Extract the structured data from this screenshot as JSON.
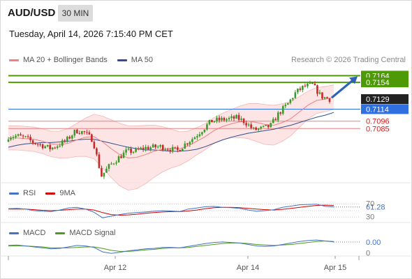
{
  "header": {
    "symbol": "AUD/USD",
    "timeframe": "30 MIN",
    "datetime": "Tuesday, April 14, 2026 7:15:40 PM CET"
  },
  "legends": {
    "main": [
      {
        "label": "MA 20 + Bollinger Bands",
        "color": "#f08080"
      },
      {
        "label": "MA 50",
        "color": "#2e4f8f"
      }
    ],
    "credit": "Research © 2026 Trading Central",
    "rsi": [
      {
        "label": "RSI",
        "color": "#4472c4"
      },
      {
        "label": "9MA",
        "color": "#d00000"
      }
    ],
    "macd": [
      {
        "label": "MACD",
        "color": "#4472c4"
      },
      {
        "label": "MACD Signal",
        "color": "#4f9a1a"
      }
    ]
  },
  "colors": {
    "up_candle": "#3a9a2a",
    "down_candle": "#c62828",
    "band_fill": "#fde0e0",
    "resistance_line": "#4e9a06",
    "pivot_line": "#2f6fde",
    "support_line": "#e88080",
    "forecast_arrow": "#2f63b8",
    "last_price_bg": "#222222"
  },
  "chart_data": [
    {
      "type": "candlestick",
      "title": "AUD/USD",
      "timeframe": "30 MIN",
      "x_ticks": [
        "Apr 12",
        "Apr 14",
        "Apr 15"
      ],
      "ylim": [
        0.7004,
        0.7177
      ],
      "last_price": 0.7129,
      "price_labels": [
        {
          "value": 0.7164,
          "style": "resistance-box"
        },
        {
          "value": 0.7154,
          "style": "resistance-box"
        },
        {
          "value": 0.7129,
          "style": "last-price"
        },
        {
          "value": 0.7114,
          "style": "pivot-box"
        },
        {
          "value": 0.7096,
          "style": "support-text"
        },
        {
          "value": 0.7085,
          "style": "support-text"
        }
      ],
      "levels": {
        "resistance": [
          0.7164,
          0.7154
        ],
        "pivot": 0.7114,
        "support": [
          0.7096,
          0.7085
        ]
      },
      "close_path": [
        0.7073,
        0.7074,
        0.7071,
        0.7064,
        0.706,
        0.7055,
        0.7061,
        0.7069,
        0.7082,
        0.7079,
        0.7068,
        0.7014,
        0.703,
        0.7041,
        0.7051,
        0.7051,
        0.7056,
        0.7057,
        0.7058,
        0.7055,
        0.7052,
        0.7063,
        0.7072,
        0.7084,
        0.7096,
        0.7098,
        0.7099,
        0.7101,
        0.7095,
        0.7083,
        0.7085,
        0.7089,
        0.7108,
        0.7121,
        0.7139,
        0.7148,
        0.715,
        0.7133,
        0.7129
      ],
      "series": [
        {
          "name": "MA 20",
          "values": [
            0.7071,
            0.7071,
            0.707,
            0.7069,
            0.7066,
            0.7062,
            0.7061,
            0.7063,
            0.7068,
            0.7072,
            0.7073,
            0.7065,
            0.7055,
            0.7046,
            0.7041,
            0.7042,
            0.7046,
            0.7051,
            0.7054,
            0.7055,
            0.7055,
            0.7059,
            0.7066,
            0.7073,
            0.7082,
            0.7088,
            0.7092,
            0.7095,
            0.7096,
            0.7094,
            0.7091,
            0.709,
            0.7094,
            0.71,
            0.711,
            0.712,
            0.7127,
            0.7129,
            0.7132
          ]
        },
        {
          "name": "MA 50",
          "values": [
            0.7057,
            0.706,
            0.7062,
            0.7063,
            0.7064,
            0.7064,
            0.7065,
            0.7066,
            0.7068,
            0.7069,
            0.7069,
            0.7066,
            0.7063,
            0.706,
            0.7057,
            0.7055,
            0.7053,
            0.7053,
            0.7052,
            0.7051,
            0.7051,
            0.7052,
            0.7054,
            0.7058,
            0.7063,
            0.7068,
            0.7072,
            0.7075,
            0.7078,
            0.708,
            0.7082,
            0.7084,
            0.7087,
            0.709,
            0.7094,
            0.7098,
            0.7102,
            0.7105,
            0.7109
          ]
        }
      ]
    },
    {
      "type": "line",
      "title": "RSI",
      "ylim": [
        20,
        80
      ],
      "value_labels": [
        "61.28",
        "70",
        "30"
      ],
      "series": [
        {
          "name": "RSI",
          "values": [
            56,
            57,
            55,
            50,
            48,
            47,
            52,
            58,
            60,
            55,
            45,
            28,
            33,
            38,
            42,
            44,
            46,
            48,
            50,
            49,
            47,
            55,
            58,
            62,
            63,
            60,
            59,
            57,
            52,
            48,
            50,
            53,
            60,
            64,
            68,
            69,
            70,
            63,
            61.28
          ]
        },
        {
          "name": "9MA",
          "values": [
            55,
            55,
            55,
            53,
            51,
            50,
            51,
            53,
            55,
            55,
            52,
            44,
            38,
            36,
            37,
            39,
            42,
            44,
            46,
            47,
            47,
            49,
            52,
            56,
            59,
            60,
            60,
            59,
            57,
            55,
            53,
            52,
            54,
            57,
            60,
            63,
            66,
            67,
            66
          ]
        }
      ]
    },
    {
      "type": "line",
      "title": "MACD",
      "value_labels": [
        "0.00",
        "0"
      ],
      "series": [
        {
          "name": "MACD",
          "values": [
            4,
            5,
            3,
            1,
            -1,
            -3,
            -2,
            1,
            4,
            3,
            0,
            -9,
            -12,
            -10,
            -7,
            -5,
            -3,
            -2,
            0,
            0,
            -1,
            2,
            5,
            8,
            10,
            11,
            10,
            9,
            6,
            3,
            2,
            3,
            6,
            9,
            12,
            14,
            15,
            13,
            11
          ]
        },
        {
          "name": "MACD Signal",
          "values": [
            3,
            3,
            3,
            2,
            1,
            -1,
            -1,
            -1,
            0,
            1,
            1,
            -2,
            -6,
            -8,
            -8,
            -7,
            -5,
            -4,
            -2,
            -1,
            -1,
            0,
            2,
            4,
            6,
            8,
            9,
            9,
            8,
            6,
            5,
            4,
            5,
            6,
            8,
            10,
            12,
            13,
            12
          ]
        }
      ]
    }
  ]
}
